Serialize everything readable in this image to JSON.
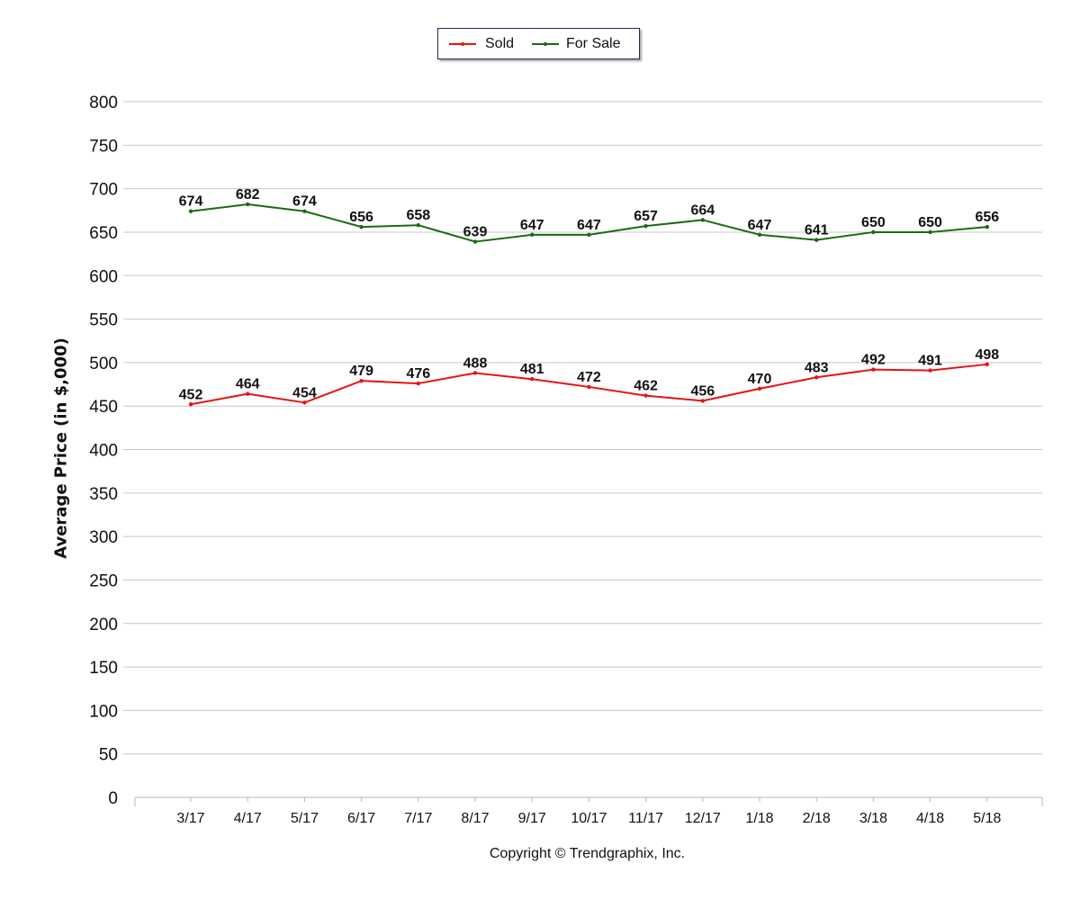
{
  "chart_data": {
    "type": "line",
    "categories": [
      "3/17",
      "4/17",
      "5/17",
      "6/17",
      "7/17",
      "8/17",
      "9/17",
      "10/17",
      "11/17",
      "12/17",
      "1/18",
      "2/18",
      "3/18",
      "4/18",
      "5/18"
    ],
    "series": [
      {
        "name": "Sold",
        "color": "#e8130f",
        "values": [
          452,
          464,
          454,
          479,
          476,
          488,
          481,
          472,
          462,
          456,
          470,
          483,
          492,
          491,
          498
        ]
      },
      {
        "name": "For Sale",
        "color": "#1a6b12",
        "values": [
          674,
          682,
          674,
          656,
          658,
          639,
          647,
          647,
          657,
          664,
          647,
          641,
          650,
          650,
          656
        ]
      }
    ],
    "ylabel": "Average Price (in $,000)",
    "xlabel": "",
    "ylim": [
      0,
      800
    ],
    "ytick_step": 50,
    "grid": true,
    "legend_position": "top-center",
    "data_labels": true
  },
  "footer": {
    "copyright": "Copyright © Trendgraphix, Inc."
  }
}
